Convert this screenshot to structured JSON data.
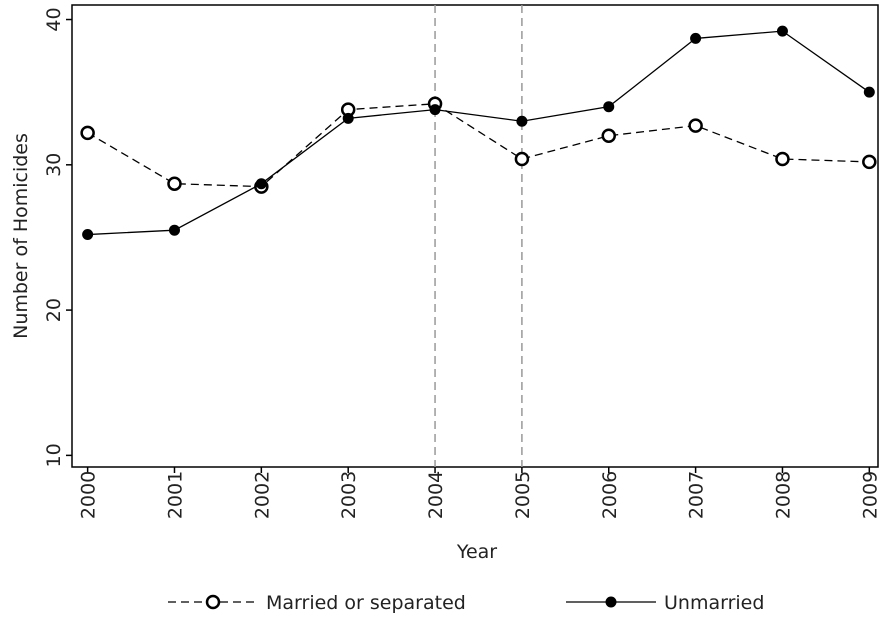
{
  "chart_data": {
    "type": "line",
    "x": [
      2000,
      2001,
      2002,
      2003,
      2004,
      2005,
      2006,
      2007,
      2008,
      2009
    ],
    "series": [
      {
        "name": "Married or separated",
        "color": "#000000",
        "dashed": true,
        "marker": "open",
        "values": [
          32.2,
          28.7,
          28.5,
          33.8,
          34.2,
          30.4,
          32.0,
          32.7,
          30.4,
          30.2
        ]
      },
      {
        "name": "Unmarried",
        "color": "#000000",
        "dashed": false,
        "marker": "filled",
        "values": [
          25.2,
          25.5,
          28.7,
          33.2,
          33.8,
          33.0,
          34.0,
          38.7,
          39.2,
          35.0
        ]
      }
    ],
    "xlabel": "Year",
    "ylabel": "Number of Homicides",
    "xlim": [
      1999.82,
      2009.1
    ],
    "xticks": [
      2000,
      2001,
      2002,
      2003,
      2004,
      2005,
      2006,
      2007,
      2008,
      2009
    ],
    "ylim": [
      9.2,
      41
    ],
    "yticks": [
      10,
      20,
      30,
      40
    ],
    "vlines": [
      2004,
      2005
    ],
    "vline_color": "#999999",
    "legend": "bottom"
  }
}
